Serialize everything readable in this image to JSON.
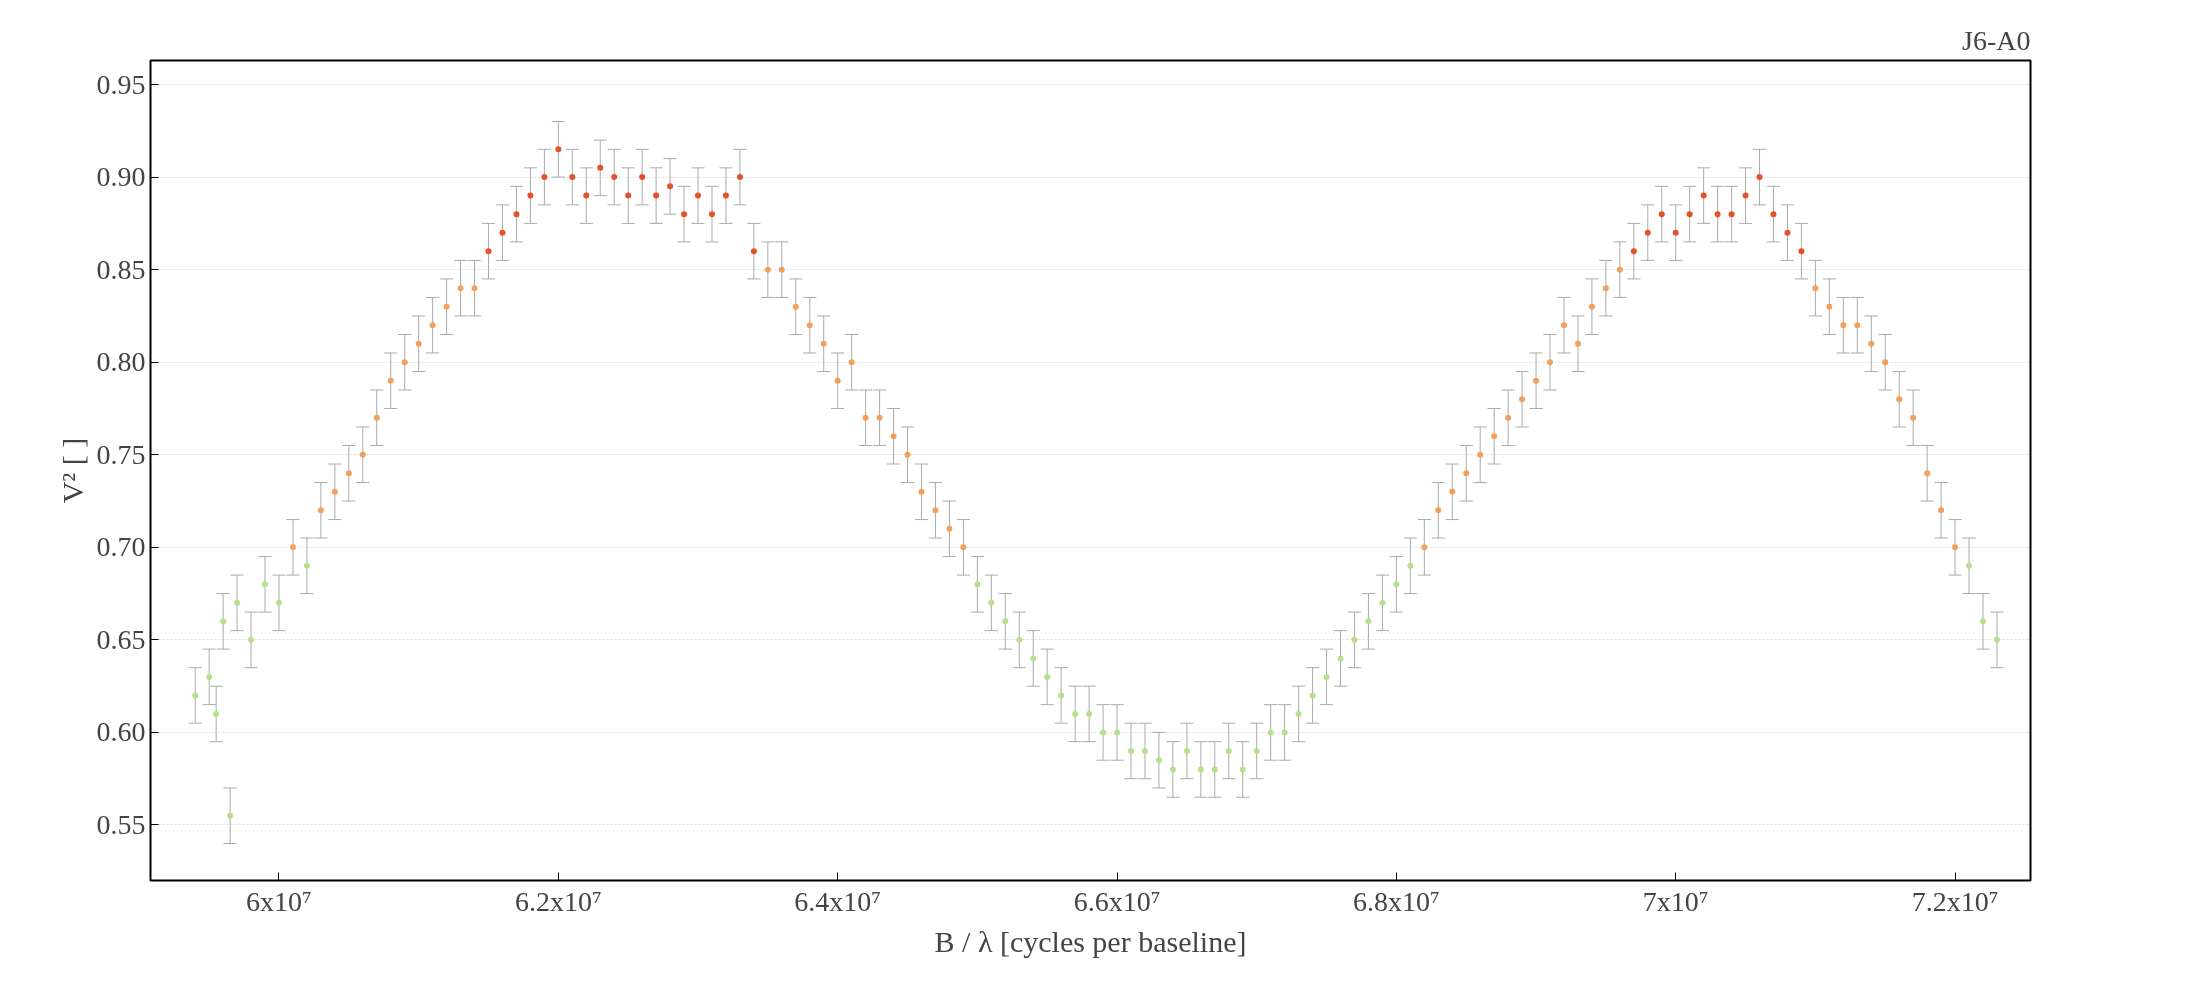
{
  "chart_data": {
    "type": "scatter",
    "title": "J6-A0",
    "xlabel": "B / λ [cycles per baseline]",
    "ylabel": "V² [ ]",
    "xlim": [
      59080000,
      72540000
    ],
    "ylim": [
      0.52,
      0.963
    ],
    "xticks": [
      {
        "value": 60000000,
        "label": "6x10⁷"
      },
      {
        "value": 62000000,
        "label": "6.2x10⁷"
      },
      {
        "value": 64000000,
        "label": "6.4x10⁷"
      },
      {
        "value": 66000000,
        "label": "6.6x10⁷"
      },
      {
        "value": 68000000,
        "label": "6.8x10⁷"
      },
      {
        "value": 70000000,
        "label": "7x10⁷"
      },
      {
        "value": 72000000,
        "label": "7.2x10⁷"
      }
    ],
    "yticks": [
      0.55,
      {
        "value": 0.6,
        "label": "0.60"
      },
      0.65,
      {
        "value": 0.7,
        "label": "0.70"
      },
      0.75,
      {
        "value": 0.8,
        "label": "0.80"
      },
      0.85,
      {
        "value": 0.9,
        "label": "0.90"
      },
      0.95
    ],
    "grid": "y",
    "marker": "circle",
    "series": [
      {
        "color": "#b5e08c",
        "x": [
          59400000,
          59500000,
          59550000,
          59600000,
          59650000,
          59700000,
          59800000,
          59900000,
          60000000,
          60200000,
          65000000,
          65100000,
          65200000,
          65300000,
          65400000,
          65500000,
          65600000,
          65700000,
          65800000,
          65900000,
          66000000,
          66100000,
          66200000,
          66300000,
          66400000,
          66500000,
          66600000,
          66700000,
          66800000,
          66900000,
          67000000,
          67100000,
          67200000,
          67300000,
          67400000,
          67500000,
          67600000,
          67700000,
          67800000,
          67900000,
          68000000,
          68100000,
          72100000,
          72200000,
          72300000
        ],
        "values": [
          0.62,
          0.63,
          0.61,
          0.66,
          0.555,
          0.67,
          0.65,
          0.68,
          0.67,
          0.69,
          0.68,
          0.67,
          0.66,
          0.65,
          0.64,
          0.63,
          0.62,
          0.61,
          0.61,
          0.6,
          0.6,
          0.59,
          0.59,
          0.585,
          0.58,
          0.59,
          0.58,
          0.58,
          0.59,
          0.58,
          0.59,
          0.6,
          0.6,
          0.61,
          0.62,
          0.63,
          0.64,
          0.65,
          0.66,
          0.67,
          0.68,
          0.69,
          0.69,
          0.66,
          0.65
        ],
        "errors": [
          0.015,
          0.015,
          0.015,
          0.015,
          0.015,
          0.015,
          0.015,
          0.015,
          0.015,
          0.015,
          0.015,
          0.015,
          0.015,
          0.015,
          0.015,
          0.015,
          0.015,
          0.015,
          0.015,
          0.015,
          0.015,
          0.015,
          0.015,
          0.015,
          0.015,
          0.015,
          0.015,
          0.015,
          0.015,
          0.015,
          0.015,
          0.015,
          0.015,
          0.015,
          0.015,
          0.015,
          0.015,
          0.015,
          0.015,
          0.015,
          0.015,
          0.015,
          0.015,
          0.015,
          0.015
        ]
      },
      {
        "color": "#f5a05a",
        "x": [
          60100000,
          60300000,
          60400000,
          60500000,
          60600000,
          60700000,
          60800000,
          60900000,
          61000000,
          61100000,
          61200000,
          61300000,
          61400000,
          63500000,
          63600000,
          63700000,
          63800000,
          63900000,
          64000000,
          64100000,
          64200000,
          64300000,
          64400000,
          64500000,
          64600000,
          64700000,
          64800000,
          64900000,
          68200000,
          68300000,
          68400000,
          68500000,
          68600000,
          68700000,
          68800000,
          68900000,
          69000000,
          69100000,
          69200000,
          69300000,
          69400000,
          69500000,
          69600000,
          71000000,
          71100000,
          71200000,
          71300000,
          71400000,
          71500000,
          71600000,
          71700000,
          71800000,
          71900000,
          72000000
        ],
        "values": [
          0.7,
          0.72,
          0.73,
          0.74,
          0.75,
          0.77,
          0.79,
          0.8,
          0.81,
          0.82,
          0.83,
          0.84,
          0.84,
          0.85,
          0.85,
          0.83,
          0.82,
          0.81,
          0.79,
          0.8,
          0.77,
          0.77,
          0.76,
          0.75,
          0.73,
          0.72,
          0.71,
          0.7,
          0.7,
          0.72,
          0.73,
          0.74,
          0.75,
          0.76,
          0.77,
          0.78,
          0.79,
          0.8,
          0.82,
          0.81,
          0.83,
          0.84,
          0.85,
          0.84,
          0.83,
          0.82,
          0.82,
          0.81,
          0.8,
          0.78,
          0.77,
          0.74,
          0.72,
          0.7
        ],
        "errors": [
          0.015,
          0.015,
          0.015,
          0.015,
          0.015,
          0.015,
          0.015,
          0.015,
          0.015,
          0.015,
          0.015,
          0.015,
          0.015,
          0.015,
          0.015,
          0.015,
          0.015,
          0.015,
          0.015,
          0.015,
          0.015,
          0.015,
          0.015,
          0.015,
          0.015,
          0.015,
          0.015,
          0.015,
          0.015,
          0.015,
          0.015,
          0.015,
          0.015,
          0.015,
          0.015,
          0.015,
          0.015,
          0.015,
          0.015,
          0.015,
          0.015,
          0.015,
          0.015,
          0.015,
          0.015,
          0.015,
          0.015,
          0.015,
          0.015,
          0.015,
          0.015,
          0.015,
          0.015,
          0.015
        ]
      },
      {
        "color": "#e8502a",
        "x": [
          61500000,
          61600000,
          61700000,
          61800000,
          61900000,
          62000000,
          62100000,
          62200000,
          62300000,
          62400000,
          62500000,
          62600000,
          62700000,
          62800000,
          62900000,
          63000000,
          63100000,
          63200000,
          63300000,
          63400000,
          69700000,
          69800000,
          69900000,
          70000000,
          70100000,
          70200000,
          70300000,
          70400000,
          70500000,
          70600000,
          70700000,
          70800000,
          70900000
        ],
        "values": [
          0.86,
          0.87,
          0.88,
          0.89,
          0.9,
          0.915,
          0.9,
          0.89,
          0.905,
          0.9,
          0.89,
          0.9,
          0.89,
          0.895,
          0.88,
          0.89,
          0.88,
          0.89,
          0.9,
          0.86,
          0.86,
          0.87,
          0.88,
          0.87,
          0.88,
          0.89,
          0.88,
          0.88,
          0.89,
          0.9,
          0.88,
          0.87,
          0.86
        ],
        "errors": [
          0.015,
          0.015,
          0.015,
          0.015,
          0.015,
          0.015,
          0.015,
          0.015,
          0.015,
          0.015,
          0.015,
          0.015,
          0.015,
          0.015,
          0.015,
          0.015,
          0.015,
          0.015,
          0.015,
          0.015,
          0.015,
          0.015,
          0.015,
          0.015,
          0.015,
          0.015,
          0.015,
          0.015,
          0.015,
          0.015,
          0.015,
          0.015,
          0.015
        ]
      }
    ]
  }
}
